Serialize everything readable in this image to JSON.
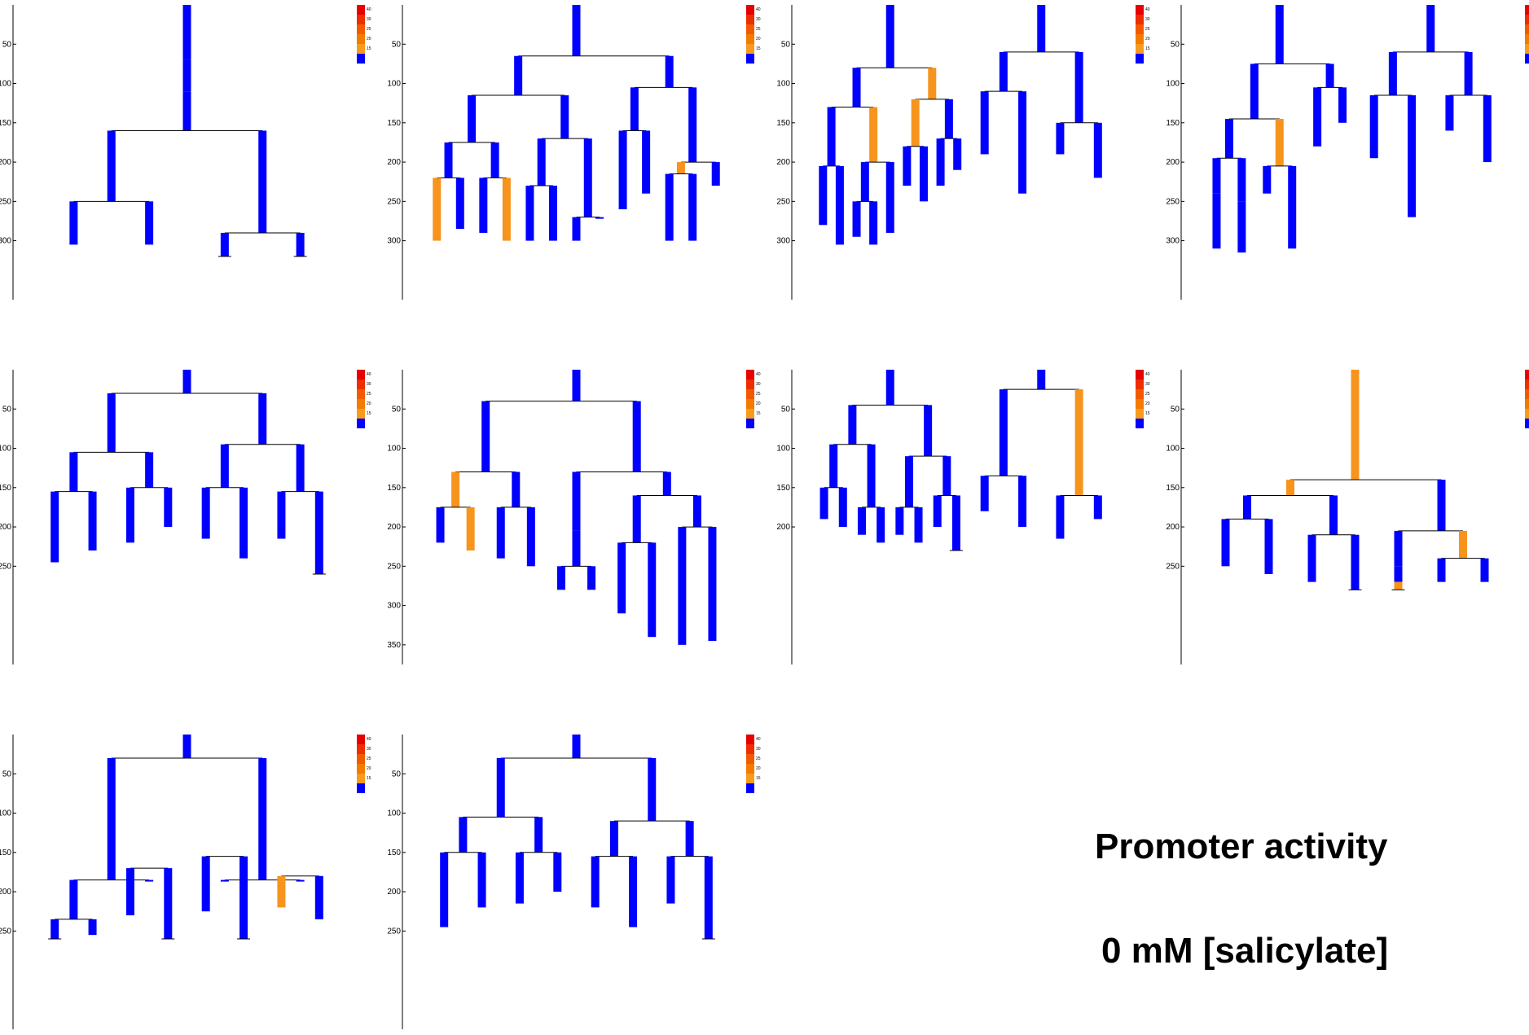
{
  "caption": {
    "title": "Promoter activity",
    "condition": "0 mM [salicylate]"
  },
  "chart_data": {
    "type": "lineage-tree",
    "colors": {
      "low": "#0000ff",
      "mid": "#f7941d",
      "line": "#000000"
    },
    "colorbar": {
      "ticks": [
        "40",
        "30",
        "25",
        "20",
        "15"
      ],
      "colors": [
        "#e60000",
        "#ee2d00",
        "#f25a00",
        "#f47a00",
        "#f89b1c",
        "#0000ff"
      ]
    },
    "panels": [
      {
        "yticks": [
          "50",
          "100",
          "150",
          "200",
          "250",
          "300"
        ],
        "ymax": 320,
        "trees": [
          [
            [
              0,
              70,
              0
            ],
            [
              1,
              110,
              0
            ],
            [
              2,
              160,
              0
            ],
            [
              3,
              250,
              0
            ],
            [
              4,
              305,
              0
            ],
            [
              4,
              305,
              0
            ],
            [
              3,
              290,
              0
            ],
            [
              4,
              320,
              0
            ],
            [
              4,
              320,
              0
            ],
            [
              3,
              260,
              0
            ],
            [
              4,
              300,
              0
            ],
            [
              4,
              320,
              1
            ],
            [
              2,
              225,
              1
            ],
            [
              3,
              305,
              0
            ],
            [
              3,
              300,
              0
            ],
            [
              1,
              120,
              1
            ],
            [
              2,
              170,
              0
            ],
            [
              3,
              210,
              0
            ],
            [
              4,
              290,
              0
            ],
            [
              4,
              270,
              0
            ],
            [
              3,
              210,
              0
            ],
            [
              4,
              280,
              0
            ],
            [
              4,
              310,
              0
            ],
            [
              2,
              170,
              0
            ],
            [
              3,
              230,
              0
            ],
            [
              3,
              250,
              0
            ]
          ]
        ]
      },
      {
        "yticks": [
          "50",
          "100",
          "150",
          "200",
          "250",
          "300"
        ],
        "ymax": 310,
        "trees": [
          [
            [
              0,
              65,
              0
            ],
            [
              1,
              115,
              0
            ],
            [
              2,
              175,
              0
            ],
            [
              3,
              220,
              0
            ],
            [
              4,
              300,
              1
            ],
            [
              4,
              285,
              0
            ],
            [
              3,
              220,
              0
            ],
            [
              4,
              290,
              0
            ],
            [
              4,
              300,
              1
            ],
            [
              2,
              170,
              0
            ],
            [
              3,
              230,
              0
            ],
            [
              4,
              300,
              0
            ],
            [
              4,
              300,
              0
            ],
            [
              3,
              270,
              0
            ],
            [
              4,
              300,
              0
            ],
            [
              4,
              250,
              0
            ],
            [
              1,
              105,
              0
            ],
            [
              2,
              160,
              0
            ],
            [
              3,
              260,
              0
            ],
            [
              3,
              240,
              0
            ],
            [
              2,
              200,
              0
            ],
            [
              3,
              215,
              1
            ],
            [
              4,
              300,
              0
            ],
            [
              4,
              300,
              0
            ],
            [
              3,
              230,
              0
            ]
          ]
        ]
      },
      {
        "yticks": [
          "50",
          "100",
          "150",
          "200",
          "250",
          "300"
        ],
        "ymax": 320,
        "trees": [
          [
            [
              0,
              80,
              0
            ],
            [
              1,
              130,
              0
            ],
            [
              2,
              205,
              0
            ],
            [
              3,
              280,
              0
            ],
            [
              3,
              305,
              0
            ],
            [
              2,
              200,
              1
            ],
            [
              3,
              250,
              0
            ],
            [
              4,
              295,
              0
            ],
            [
              4,
              305,
              0
            ],
            [
              3,
              290,
              0
            ],
            [
              1,
              120,
              1
            ],
            [
              2,
              180,
              1
            ],
            [
              3,
              230,
              0
            ],
            [
              3,
              250,
              0
            ],
            [
              2,
              170,
              0
            ],
            [
              3,
              230,
              0
            ],
            [
              3,
              210,
              0
            ]
          ],
          [
            [
              0,
              60,
              0
            ],
            [
              1,
              110,
              0
            ],
            [
              2,
              190,
              0
            ],
            [
              2,
              240,
              0
            ],
            [
              1,
              150,
              0
            ],
            [
              2,
              190,
              0
            ],
            [
              2,
              220,
              0
            ]
          ]
        ]
      },
      {
        "yticks": [
          "50",
          "100",
          "150",
          "200",
          "250",
          "300"
        ],
        "ymax": 320,
        "trees": [
          [
            [
              0,
              75,
              0
            ],
            [
              1,
              145,
              0
            ],
            [
              2,
              195,
              0
            ],
            [
              3,
              240,
              0
            ],
            [
              4,
              310,
              0
            ],
            [
              3,
              250,
              0
            ],
            [
              4,
              315,
              0
            ],
            [
              2,
              205,
              1
            ],
            [
              3,
              240,
              0
            ],
            [
              3,
              310,
              0
            ],
            [
              1,
              105,
              0
            ],
            [
              2,
              180,
              0
            ],
            [
              2,
              150,
              0
            ]
          ],
          [
            [
              0,
              60,
              0
            ],
            [
              1,
              115,
              0
            ],
            [
              2,
              195,
              0
            ],
            [
              2,
              270,
              0
            ],
            [
              1,
              115,
              0
            ],
            [
              2,
              160,
              0
            ],
            [
              2,
              200,
              0
            ]
          ]
        ]
      },
      {
        "yticks": [
          "50",
          "100",
          "150",
          "200",
          "250"
        ],
        "ymax": 260,
        "trees": [
          [
            [
              0,
              30,
              0
            ],
            [
              1,
              105,
              0
            ],
            [
              2,
              155,
              0
            ],
            [
              3,
              245,
              0
            ],
            [
              3,
              230,
              0
            ],
            [
              2,
              150,
              0
            ],
            [
              3,
              220,
              0
            ],
            [
              3,
              200,
              0
            ],
            [
              1,
              95,
              0
            ],
            [
              2,
              150,
              0
            ],
            [
              3,
              215,
              0
            ],
            [
              3,
              240,
              0
            ],
            [
              2,
              155,
              0
            ],
            [
              3,
              215,
              0
            ],
            [
              3,
              260,
              0
            ]
          ]
        ]
      },
      {
        "yticks": [
          "50",
          "100",
          "150",
          "200",
          "250",
          "300",
          "350"
        ],
        "ymax": 370,
        "trees": [
          [
            [
              0,
              40,
              0
            ],
            [
              1,
              130,
              0
            ],
            [
              2,
              175,
              1
            ],
            [
              3,
              220,
              0
            ],
            [
              3,
              230,
              1
            ],
            [
              2,
              175,
              0
            ],
            [
              3,
              240,
              0
            ],
            [
              3,
              250,
              0
            ],
            [
              1,
              130,
              0
            ],
            [
              2,
              205,
              0
            ],
            [
              3,
              250,
              0
            ],
            [
              4,
              280,
              0
            ],
            [
              4,
              280,
              0
            ],
            [
              2,
              160,
              0
            ],
            [
              3,
              220,
              0
            ],
            [
              4,
              310,
              0
            ],
            [
              4,
              340,
              0
            ],
            [
              3,
              200,
              0
            ],
            [
              4,
              350,
              0
            ],
            [
              4,
              345,
              0
            ]
          ]
        ]
      },
      {
        "yticks": [
          "50",
          "100",
          "150",
          "200"
        ],
        "ymax": 230,
        "trees": [
          [
            [
              0,
              45,
              0
            ],
            [
              1,
              95,
              0
            ],
            [
              2,
              150,
              0
            ],
            [
              3,
              190,
              0
            ],
            [
              3,
              200,
              0
            ],
            [
              2,
              175,
              0
            ],
            [
              3,
              210,
              0
            ],
            [
              3,
              220,
              0
            ],
            [
              1,
              110,
              0
            ],
            [
              2,
              175,
              0
            ],
            [
              3,
              210,
              0
            ],
            [
              3,
              220,
              0
            ],
            [
              2,
              160,
              0
            ],
            [
              3,
              200,
              0
            ],
            [
              3,
              230,
              0
            ]
          ],
          [
            [
              0,
              25,
              0
            ],
            [
              1,
              135,
              0
            ],
            [
              2,
              180,
              0
            ],
            [
              2,
              200,
              0
            ],
            [
              1,
              160,
              1
            ],
            [
              2,
              215,
              0
            ],
            [
              2,
              190,
              0
            ]
          ]
        ]
      },
      {
        "yticks": [
          "50",
          "100",
          "150",
          "200",
          "250"
        ],
        "ymax": 280,
        "trees": [
          [
            [
              0,
              140,
              1
            ],
            [
              1,
              160,
              1
            ],
            [
              2,
              190,
              0
            ],
            [
              3,
              250,
              0
            ],
            [
              3,
              260,
              0
            ],
            [
              2,
              210,
              0
            ],
            [
              3,
              270,
              0
            ],
            [
              3,
              280,
              0
            ],
            [
              1,
              205,
              0
            ],
            [
              2,
              250,
              0
            ],
            [
              3,
              270,
              0
            ],
            [
              4,
              280,
              1
            ],
            [
              2,
              240,
              1
            ],
            [
              3,
              270,
              0
            ],
            [
              3,
              270,
              0
            ]
          ]
        ]
      },
      {
        "yticks": [
          "50",
          "100",
          "150",
          "200",
          "250"
        ],
        "ymax": 260,
        "trees": [
          [
            [
              0,
              30,
              0
            ],
            [
              1,
              185,
              0
            ],
            [
              2,
              235,
              0
            ],
            [
              3,
              260,
              0
            ],
            [
              3,
              255,
              0
            ],
            [
              2,
              170,
              0
            ],
            [
              3,
              230,
              0
            ],
            [
              3,
              260,
              0
            ],
            [
              1,
              185,
              0
            ],
            [
              2,
              155,
              0
            ],
            [
              3,
              225,
              0
            ],
            [
              3,
              260,
              0
            ],
            [
              2,
              180,
              0
            ],
            [
              3,
              220,
              1
            ],
            [
              3,
              235,
              0
            ]
          ]
        ]
      },
      {
        "yticks": [
          "50",
          "100",
          "150",
          "200",
          "250"
        ],
        "ymax": 260,
        "trees": [
          [
            [
              0,
              30,
              0
            ],
            [
              1,
              105,
              0
            ],
            [
              2,
              150,
              0
            ],
            [
              3,
              245,
              0
            ],
            [
              3,
              220,
              0
            ],
            [
              2,
              150,
              0
            ],
            [
              3,
              215,
              0
            ],
            [
              3,
              200,
              0
            ],
            [
              1,
              110,
              0
            ],
            [
              2,
              155,
              0
            ],
            [
              3,
              220,
              0
            ],
            [
              3,
              245,
              0
            ],
            [
              2,
              155,
              0
            ],
            [
              3,
              215,
              0
            ],
            [
              3,
              260,
              0
            ]
          ]
        ]
      }
    ]
  }
}
